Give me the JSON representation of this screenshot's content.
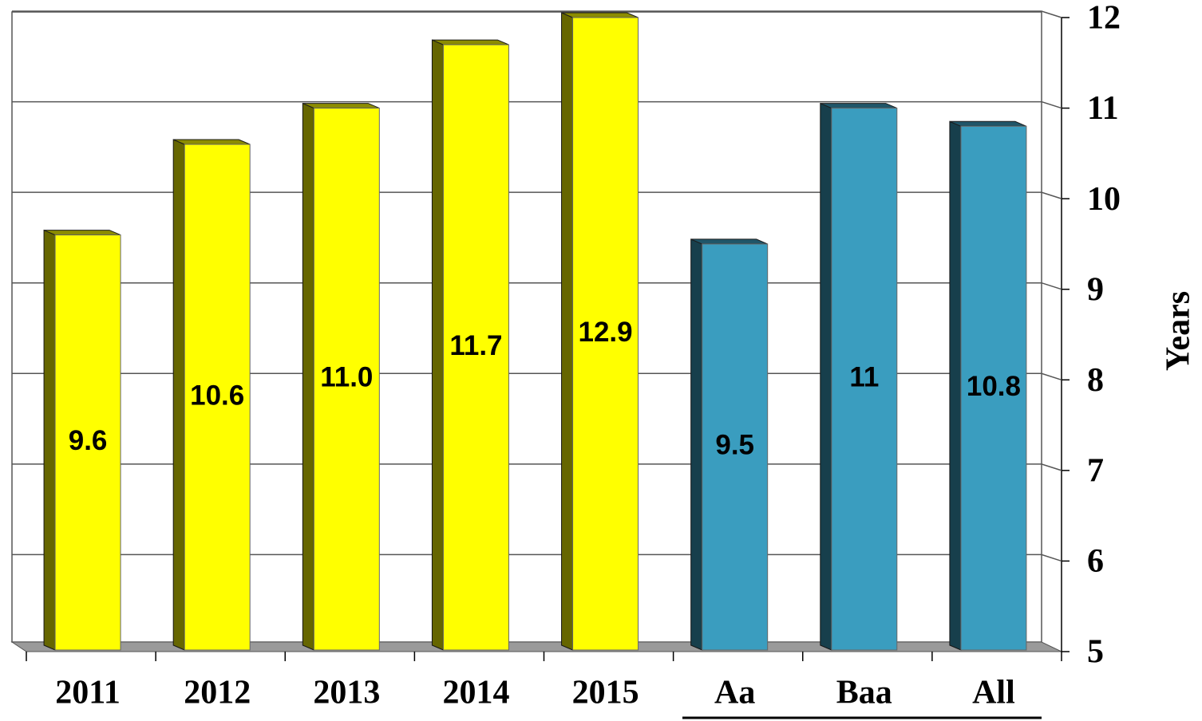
{
  "chart_data": {
    "type": "bar",
    "categories": [
      "2011",
      "2012",
      "2013",
      "2014",
      "2015",
      "Aa",
      "Baa",
      "All"
    ],
    "values": [
      9.6,
      10.6,
      11.0,
      11.7,
      12.9,
      9.5,
      11,
      10.8
    ],
    "value_labels": [
      "9.6",
      "10.6",
      "11.0",
      "11.7",
      "12.9",
      "9.5",
      "11",
      "10.8"
    ],
    "colors": [
      "#ffff00",
      "#ffff00",
      "#ffff00",
      "#ffff00",
      "#ffff00",
      "#3a9dbf",
      "#3a9dbf",
      "#3a9dbf"
    ],
    "y_label": "Years",
    "ylim": [
      5,
      12
    ],
    "yticks": [
      5,
      6,
      7,
      8,
      9,
      10,
      11,
      12
    ],
    "y_axis_side": "right",
    "grid": true
  }
}
